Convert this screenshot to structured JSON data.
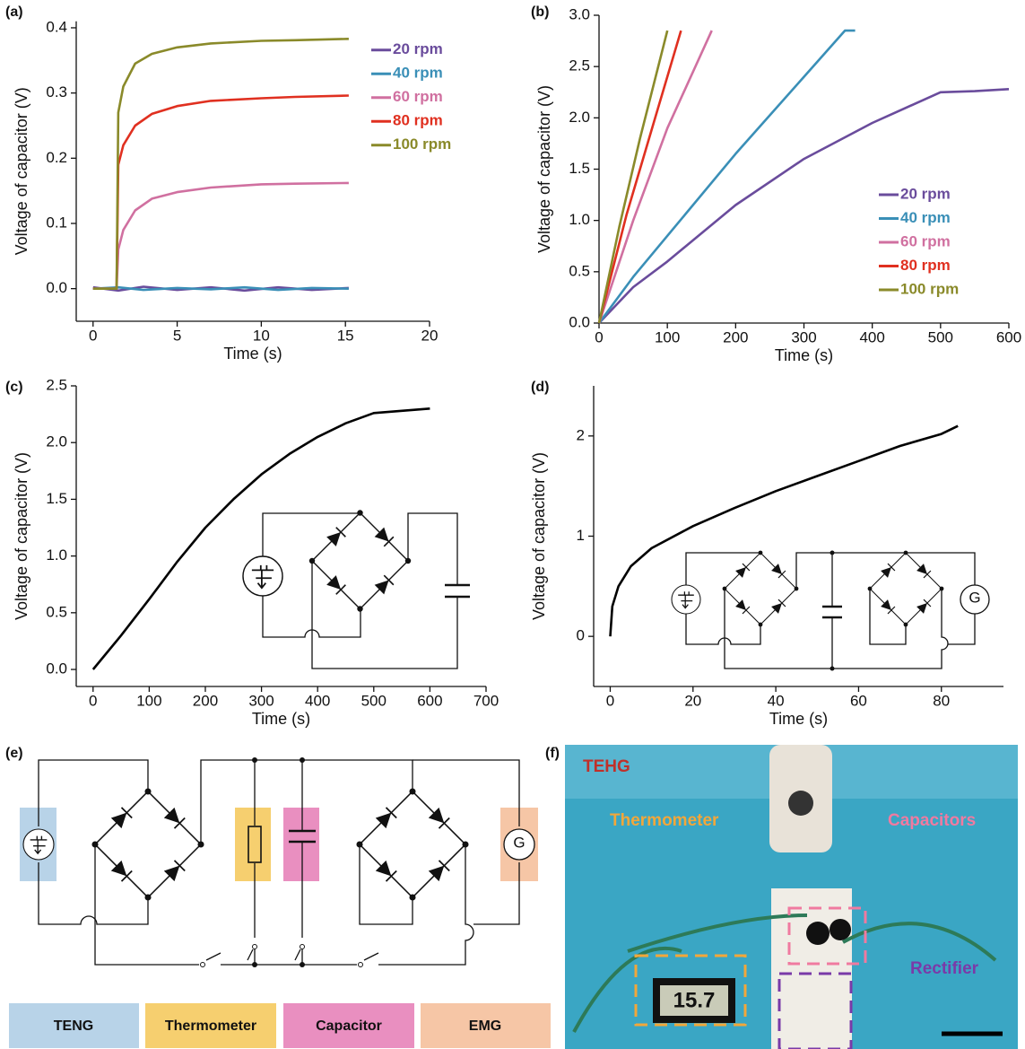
{
  "panel_labels": [
    "(a)",
    "(b)",
    "(c)",
    "(d)",
    "(e)",
    "(f)"
  ],
  "chart_data": [
    {
      "type": "line",
      "xlabel": "Time (s)",
      "ylabel": "Voltage of capacitor (V)",
      "xlim": [
        -1,
        20
      ],
      "ylim": [
        -0.05,
        0.41
      ],
      "xticks": [
        0,
        5,
        10,
        15,
        20
      ],
      "yticks": [
        {
          "value": 0,
          "label": "0.0"
        },
        0.1,
        0.2,
        0.3,
        0.4
      ],
      "legend": "upper right",
      "series": [
        {
          "name": "20 rpm",
          "color": "#6a4c9c",
          "x": [
            0,
            1.5,
            3,
            5,
            7,
            9,
            11,
            13,
            15.2
          ],
          "values": [
            0.002,
            -0.003,
            0.003,
            -0.002,
            0.002,
            -0.003,
            0.002,
            -0.002,
            0.001
          ]
        },
        {
          "name": "40 rpm",
          "color": "#3a8fb7",
          "x": [
            0,
            1.5,
            3,
            5,
            7,
            9,
            11,
            13,
            15.2
          ],
          "values": [
            0,
            0.002,
            -0.002,
            0.001,
            -0.001,
            0.002,
            -0.002,
            0.001,
            0
          ]
        },
        {
          "name": "60 rpm",
          "color": "#d070a0",
          "x": [
            0,
            1.4,
            1.5,
            1.8,
            2.5,
            3.5,
            5,
            7,
            10,
            12,
            15.2
          ],
          "values": [
            0,
            0,
            0.06,
            0.09,
            0.12,
            0.138,
            0.148,
            0.155,
            0.16,
            0.161,
            0.162
          ]
        },
        {
          "name": "80 rpm",
          "color": "#e03020",
          "x": [
            0,
            1.4,
            1.5,
            1.8,
            2.5,
            3.5,
            5,
            7,
            10,
            12,
            15.2
          ],
          "values": [
            0,
            0,
            0.19,
            0.22,
            0.25,
            0.268,
            0.28,
            0.288,
            0.292,
            0.294,
            0.296
          ]
        },
        {
          "name": "100 rpm",
          "color": "#8a8a2a",
          "x": [
            0,
            1.4,
            1.5,
            1.8,
            2.5,
            3.5,
            5,
            7,
            10,
            12,
            15.2
          ],
          "values": [
            0,
            0,
            0.27,
            0.31,
            0.345,
            0.36,
            0.37,
            0.376,
            0.38,
            0.381,
            0.383
          ]
        }
      ]
    },
    {
      "type": "line",
      "xlabel": "Time (s)",
      "ylabel": "Voltage of capacitor (V)",
      "xlim": [
        0,
        600
      ],
      "ylim": [
        0,
        3
      ],
      "xticks": [
        0,
        100,
        200,
        300,
        400,
        500,
        600
      ],
      "yticks": [
        {
          "value": 0,
          "label": "0.0"
        },
        0.5,
        {
          "value": 1,
          "label": "1.0"
        },
        1.5,
        {
          "value": 2,
          "label": "2.0"
        },
        2.5,
        {
          "value": 3,
          "label": "3.0"
        }
      ],
      "legend": "lower right",
      "series": [
        {
          "name": "20 rpm",
          "color": "#6a4c9c",
          "x": [
            0,
            50,
            100,
            200,
            300,
            400,
            500,
            550,
            600
          ],
          "values": [
            0,
            0.35,
            0.6,
            1.15,
            1.6,
            1.95,
            2.25,
            2.26,
            2.28
          ]
        },
        {
          "name": "40 rpm",
          "color": "#3a8fb7",
          "x": [
            0,
            50,
            100,
            200,
            300,
            360,
            375
          ],
          "values": [
            0,
            0.45,
            0.85,
            1.65,
            2.4,
            2.85,
            2.85
          ]
        },
        {
          "name": "60 rpm",
          "color": "#d070a0",
          "x": [
            0,
            50,
            100,
            165
          ],
          "values": [
            0,
            1.0,
            1.9,
            2.85
          ]
        },
        {
          "name": "80 rpm",
          "color": "#e03020",
          "x": [
            0,
            40,
            80,
            120
          ],
          "values": [
            0,
            1.05,
            1.95,
            2.85
          ]
        },
        {
          "name": "100 rpm",
          "color": "#8a8a2a",
          "x": [
            0,
            30,
            60,
            100
          ],
          "values": [
            0,
            0.95,
            1.8,
            2.85
          ]
        }
      ]
    },
    {
      "type": "line",
      "xlabel": "Time (s)",
      "ylabel": "Voltage of capacitor (V)",
      "color": "#000000",
      "xlim": [
        -30,
        700
      ],
      "ylim": [
        -0.15,
        2.5
      ],
      "xticks": [
        0,
        100,
        200,
        300,
        400,
        500,
        600,
        700
      ],
      "yticks": [
        {
          "value": 0,
          "label": "0.0"
        },
        0.5,
        {
          "value": 1,
          "label": "1.0"
        },
        1.5,
        {
          "value": 2,
          "label": "2.0"
        },
        2.5
      ],
      "x": [
        0,
        50,
        100,
        150,
        200,
        250,
        300,
        350,
        400,
        450,
        500,
        550,
        600
      ],
      "values": [
        0,
        0.3,
        0.62,
        0.95,
        1.25,
        1.5,
        1.72,
        1.9,
        2.05,
        2.17,
        2.26,
        2.28,
        2.3
      ]
    },
    {
      "type": "line",
      "xlabel": "Time (s)",
      "ylabel": "Voltage of capacitor (V)",
      "color": "#000000",
      "xlim": [
        -4,
        95
      ],
      "ylim": [
        -0.5,
        2.5
      ],
      "xticks": [
        0,
        20,
        40,
        60,
        80
      ],
      "yticks": [
        0,
        1,
        2
      ],
      "x": [
        0,
        0.5,
        2,
        5,
        10,
        20,
        30,
        40,
        50,
        60,
        70,
        80,
        84
      ],
      "values": [
        0,
        0.3,
        0.5,
        0.7,
        0.88,
        1.1,
        1.28,
        1.45,
        1.6,
        1.75,
        1.9,
        2.02,
        2.1
      ]
    }
  ],
  "circuit": {
    "generator_d": "G",
    "generator_e": "G",
    "legend": [
      "TENG",
      "Thermometer",
      "Capacitor",
      "EMG"
    ]
  },
  "photo": {
    "labels": [
      "TEHG",
      "Thermometer",
      "Capacitors",
      "Rectifier"
    ],
    "display": "15.7"
  }
}
